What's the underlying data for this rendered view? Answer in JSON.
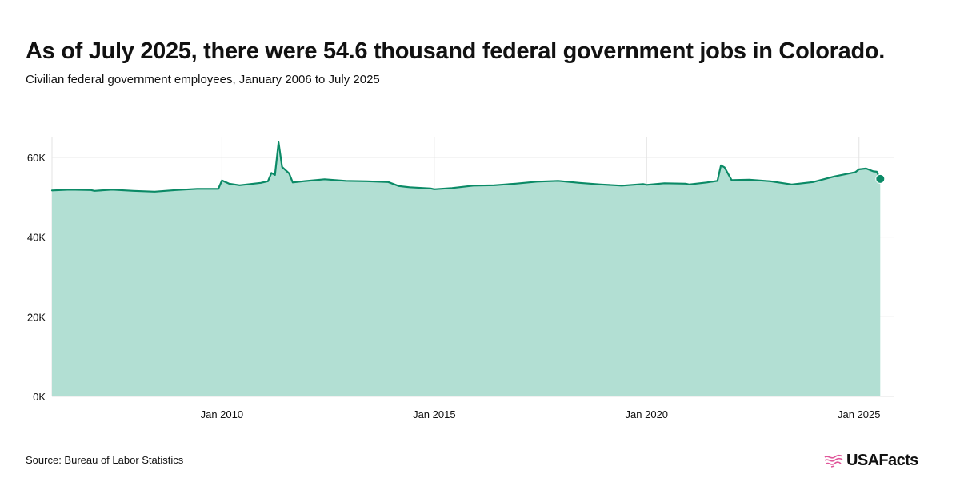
{
  "header": {
    "title": "As of July 2025, there were 54.6 thousand federal government jobs in Colorado.",
    "subtitle": "Civilian federal government employees, January 2006 to July 2025"
  },
  "footer": {
    "source": "Source: Bureau of Labor Statistics",
    "logo_text": "USAFacts"
  },
  "colors": {
    "line": "#0b8a66",
    "area": "#b2dfd3",
    "grid": "#e3e3e3",
    "logo_accent": "#e0569a"
  },
  "chart_data": {
    "type": "area",
    "title": "As of July 2025, there were 54.6 thousand federal government jobs in Colorado.",
    "subtitle": "Civilian federal government employees, January 2006 to July 2025",
    "xlabel": "",
    "ylabel": "",
    "x_range": [
      "2006-01",
      "2025-07"
    ],
    "ylim": [
      0,
      65
    ],
    "y_ticks": [
      0,
      20,
      40,
      60
    ],
    "y_tick_labels": [
      "0K",
      "20K",
      "40K",
      "60K"
    ],
    "x_ticks": [
      "2010-01",
      "2015-01",
      "2020-01",
      "2025-01"
    ],
    "x_tick_labels": [
      "Jan 2010",
      "Jan 2015",
      "Jan 2020",
      "Jan 2025"
    ],
    "grid": true,
    "highlight_last_point": true,
    "series": [
      {
        "name": "",
        "unit": "thousand",
        "points": [
          [
            "2006-01",
            51.7
          ],
          [
            "2006-06",
            51.9
          ],
          [
            "2006-12",
            51.8
          ],
          [
            "2007-01",
            51.6
          ],
          [
            "2007-06",
            51.9
          ],
          [
            "2007-12",
            51.6
          ],
          [
            "2008-06",
            51.4
          ],
          [
            "2008-12",
            51.8
          ],
          [
            "2009-06",
            52.1
          ],
          [
            "2009-12",
            52.1
          ],
          [
            "2010-01",
            54.2
          ],
          [
            "2010-03",
            53.4
          ],
          [
            "2010-06",
            53.0
          ],
          [
            "2010-09",
            53.3
          ],
          [
            "2010-12",
            53.6
          ],
          [
            "2011-02",
            54.0
          ],
          [
            "2011-03",
            56.1
          ],
          [
            "2011-04",
            55.6
          ],
          [
            "2011-05",
            63.8
          ],
          [
            "2011-06",
            57.6
          ],
          [
            "2011-08",
            56.0
          ],
          [
            "2011-09",
            53.7
          ],
          [
            "2011-12",
            54.0
          ],
          [
            "2012-06",
            54.5
          ],
          [
            "2012-12",
            54.1
          ],
          [
            "2013-06",
            54.0
          ],
          [
            "2013-12",
            53.8
          ],
          [
            "2014-03",
            52.8
          ],
          [
            "2014-06",
            52.5
          ],
          [
            "2014-12",
            52.2
          ],
          [
            "2015-01",
            52.0
          ],
          [
            "2015-06",
            52.3
          ],
          [
            "2015-12",
            52.9
          ],
          [
            "2016-06",
            53.0
          ],
          [
            "2016-12",
            53.4
          ],
          [
            "2017-06",
            53.9
          ],
          [
            "2017-12",
            54.1
          ],
          [
            "2018-06",
            53.6
          ],
          [
            "2018-12",
            53.2
          ],
          [
            "2019-06",
            52.9
          ],
          [
            "2019-12",
            53.3
          ],
          [
            "2020-01",
            53.1
          ],
          [
            "2020-06",
            53.5
          ],
          [
            "2020-12",
            53.4
          ],
          [
            "2021-01",
            53.2
          ],
          [
            "2021-06",
            53.7
          ],
          [
            "2021-09",
            54.1
          ],
          [
            "2021-10",
            58.0
          ],
          [
            "2021-11",
            57.5
          ],
          [
            "2022-01",
            54.3
          ],
          [
            "2022-06",
            54.4
          ],
          [
            "2022-12",
            54.0
          ],
          [
            "2023-06",
            53.2
          ],
          [
            "2023-12",
            53.8
          ],
          [
            "2024-06",
            55.2
          ],
          [
            "2024-12",
            56.3
          ],
          [
            "2025-01",
            57.0
          ],
          [
            "2025-06",
            56.4
          ],
          [
            "2025-03",
            57.2
          ],
          [
            "2025-05",
            56.5
          ],
          [
            "2025-07",
            54.6
          ]
        ]
      }
    ]
  }
}
